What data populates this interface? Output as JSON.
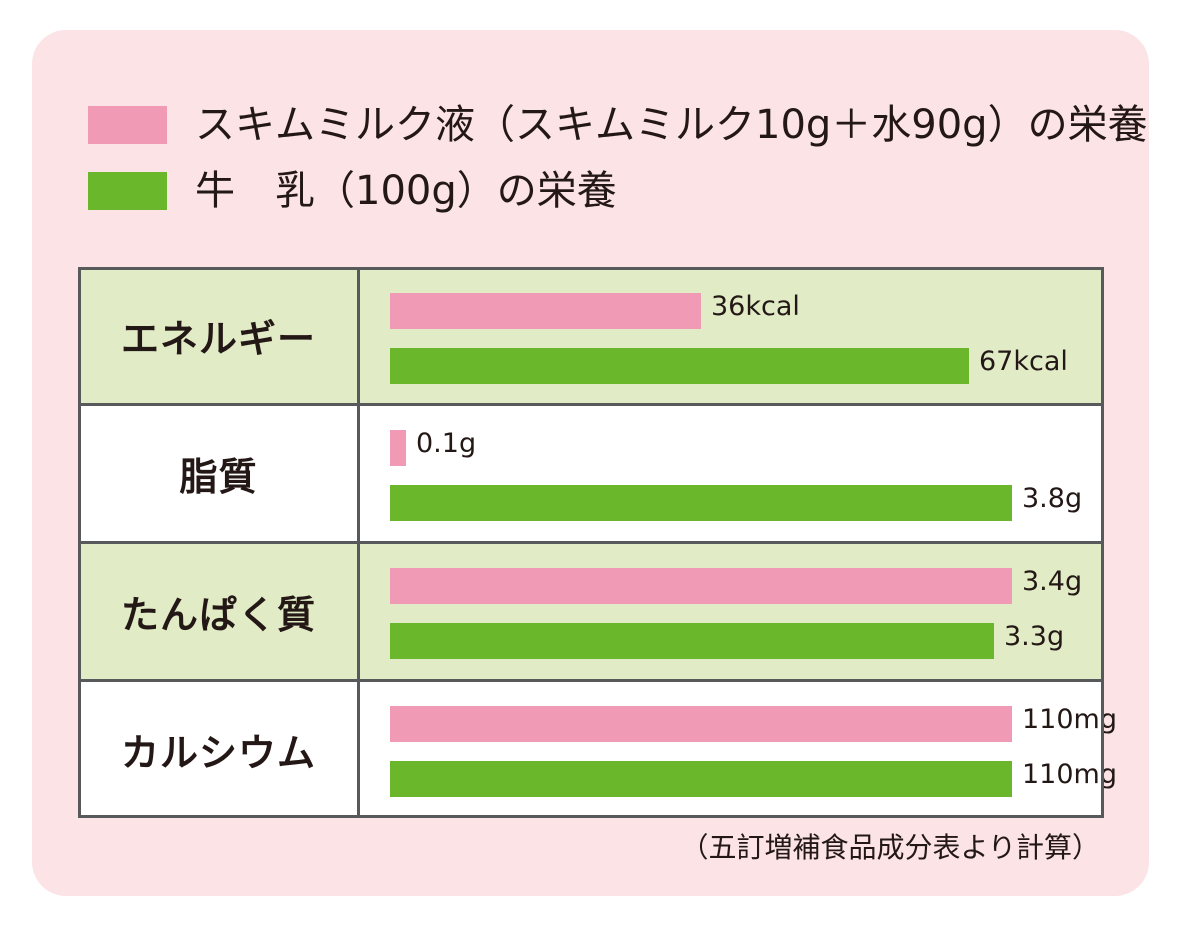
{
  "colors": {
    "panel_bg": "#fbe3e6",
    "row_green_bg": "#e1ecc6",
    "row_white_bg": "#ffffff",
    "skim": "#f19ab5",
    "milk": "#6ab72c"
  },
  "legend": [
    {
      "label": "スキムミルク液（スキムミルク10g＋水90g）の栄養",
      "color_key": "skim"
    },
    {
      "label": "牛　乳（100g）の栄養",
      "color_key": "milk"
    }
  ],
  "chart_data": {
    "type": "bar",
    "orientation": "horizontal",
    "categories": [
      "エネルギー",
      "脂質",
      "たんぱく質",
      "カルシウム"
    ],
    "series": [
      {
        "name": "スキムミルク液（スキムミルク10g＋水90g）の栄養",
        "values": [
          36,
          0.1,
          3.4,
          110
        ],
        "labels": [
          "36kcal",
          "0.1g",
          "3.4g",
          "110mg"
        ]
      },
      {
        "name": "牛　乳（100g）の栄養",
        "values": [
          67,
          3.8,
          3.3,
          110
        ],
        "labels": [
          "67kcal",
          "3.8g",
          "3.3g",
          "110mg"
        ]
      }
    ],
    "row_max": [
      72,
      3.8,
      3.4,
      110
    ],
    "row_backgrounds": [
      "green",
      "white",
      "green",
      "white"
    ],
    "grid": true,
    "legend_position": "top-left",
    "source": "（五訂増補食品成分表より計算）"
  }
}
